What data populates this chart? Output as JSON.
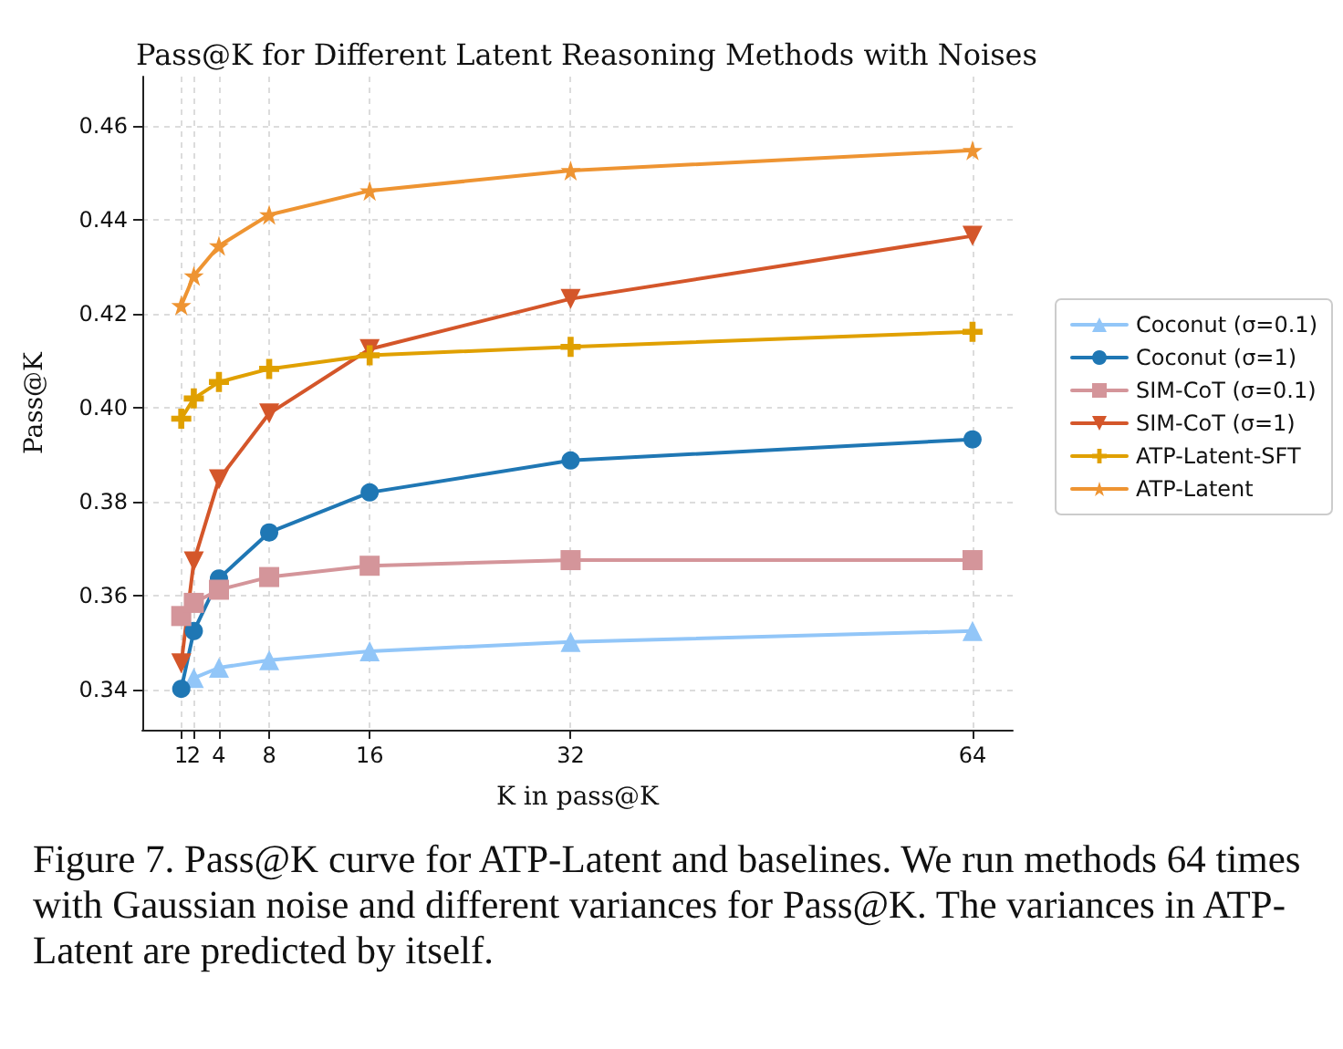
{
  "chart_data": {
    "type": "line",
    "title": "Pass@K for Different Latent Reasoning Methods with Noises",
    "xlabel": "K in pass@K",
    "ylabel": "Pass@K",
    "x": [
      1,
      2,
      4,
      8,
      16,
      32,
      64
    ],
    "series": [
      {
        "name": "Coconut (σ=0.1)",
        "color": "#92c6f8",
        "marker": "triangle",
        "values": [
          null,
          0.3425,
          0.3447,
          0.3463,
          0.3482,
          0.3502,
          0.3525
        ]
      },
      {
        "name": "Coconut (σ=1)",
        "color": "#1f77b4",
        "marker": "circle",
        "values": [
          0.3402,
          0.3525,
          0.3637,
          0.3735,
          0.382,
          0.3888,
          0.3933
        ]
      },
      {
        "name": "SIM-CoT (σ=0.1)",
        "color": "#d4959a",
        "marker": "square",
        "values": [
          0.3557,
          0.3585,
          0.3613,
          0.364,
          0.3664,
          0.3676,
          0.3676
        ]
      },
      {
        "name": "SIM-CoT (σ=1)",
        "color": "#d4562a",
        "marker": "triangle-down",
        "values": [
          0.3456,
          0.3673,
          0.3848,
          0.3988,
          0.4125,
          0.4232,
          0.4366
        ]
      },
      {
        "name": "ATP-Latent-SFT",
        "color": "#e0a000",
        "marker": "cross",
        "values": [
          0.3977,
          0.402,
          0.4055,
          0.4083,
          0.4112,
          0.413,
          0.4162
        ]
      },
      {
        "name": "ATP-Latent",
        "color": "#ee9432",
        "marker": "star",
        "values": [
          0.4218,
          0.4281,
          0.4345,
          0.4411,
          0.4462,
          0.4505,
          0.4548
        ]
      }
    ],
    "xlim": [
      -2.1,
      67.2
    ],
    "xticks": [
      1,
      2,
      4,
      8,
      16,
      32,
      64
    ],
    "ylim": [
      0.3315,
      0.4705
    ],
    "yticks": [
      {
        "value": 0.34,
        "label": "0.34"
      },
      {
        "value": 0.36,
        "label": "0.36"
      },
      {
        "value": 0.38,
        "label": "0.38"
      },
      {
        "value": 0.4,
        "label": "0.40"
      },
      {
        "value": 0.42,
        "label": "0.42"
      },
      {
        "value": 0.44,
        "label": "0.44"
      },
      {
        "value": 0.46,
        "label": "0.46"
      }
    ],
    "grid": true,
    "legend": "right",
    "line_style": "solid",
    "annotations": [
      "Figure 7. Pass@K curve for ATP-Latent and baselines. We run methods 64 times with Gaussian noise and different variances for Pass@K. The variances in ATP-Latent are predicted by itself."
    ]
  }
}
